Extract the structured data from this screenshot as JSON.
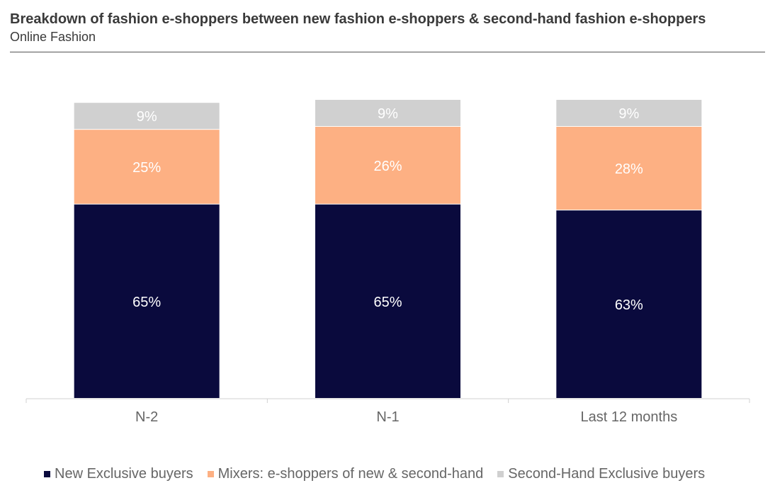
{
  "header": {
    "title": "Breakdown of fashion e-shoppers between new fashion e-shoppers & second-hand fashion e-shoppers",
    "subtitle": "Online Fashion"
  },
  "chart_data": {
    "type": "bar",
    "stacked": true,
    "categories": [
      "N-2",
      "N-1",
      "Last 12 months"
    ],
    "series": [
      {
        "name": "New Exclusive buyers",
        "values": [
          65,
          65,
          63
        ],
        "labels": [
          "65%",
          "65%",
          "63%"
        ],
        "color": "#0a0a3d",
        "label_color": "#ffffff"
      },
      {
        "name": "Mixers: e-shoppers of new & second-hand",
        "values": [
          25,
          26,
          28
        ],
        "labels": [
          "25%",
          "26%",
          "28%"
        ],
        "color": "#fdb083",
        "label_color": "#ffffff"
      },
      {
        "name": "Second-Hand Exclusive buyers",
        "values": [
          9,
          9,
          9
        ],
        "labels": [
          "9%",
          "9%",
          "9%"
        ],
        "color": "#d0d0d0",
        "label_color": "#ffffff"
      }
    ],
    "title": "Breakdown of fashion e-shoppers between new fashion e-shoppers & second-hand fashion e-shoppers",
    "xlabel": "",
    "ylabel": "",
    "ylim": [
      0,
      100
    ],
    "legend_position": "bottom",
    "grid": false
  }
}
